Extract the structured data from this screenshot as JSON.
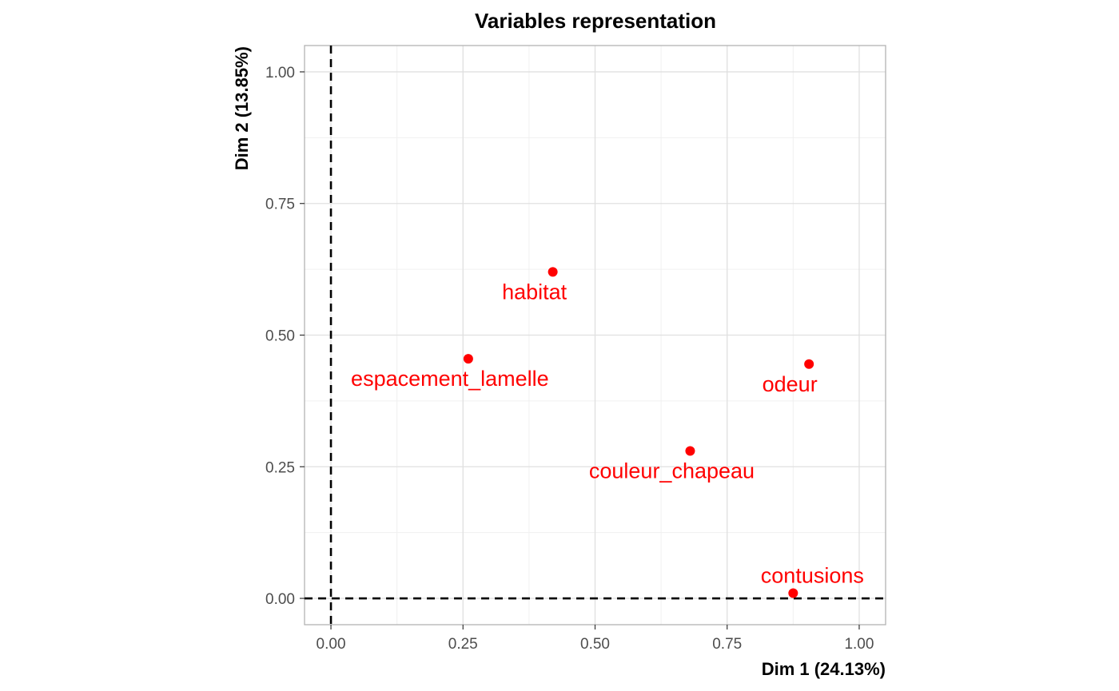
{
  "chart_data": {
    "type": "scatter",
    "title": "Variables representation",
    "xlabel": "Dim 1 (24.13%)",
    "ylabel": "Dim 2 (13.85%)",
    "xlim": [
      -0.05,
      1.05
    ],
    "ylim": [
      -0.05,
      1.05
    ],
    "x_ticks": [
      0,
      0.25,
      0.5,
      0.75,
      1
    ],
    "x_tick_labels": [
      "0.00",
      "0.25",
      "0.50",
      "0.75",
      "1.00"
    ],
    "y_ticks": [
      0,
      0.25,
      0.5,
      0.75,
      1
    ],
    "y_tick_labels": [
      "0.00",
      "0.25",
      "0.50",
      "0.75",
      "1.00"
    ],
    "grid": true,
    "reference_lines": {
      "x": 0,
      "y": 0,
      "style": "dashed"
    },
    "point_color": "#ff0000",
    "points": [
      {
        "label": "habitat",
        "x": 0.42,
        "y": 0.62
      },
      {
        "label": "espacement_lamelle",
        "x": 0.26,
        "y": 0.455
      },
      {
        "label": "odeur",
        "x": 0.905,
        "y": 0.445
      },
      {
        "label": "couleur_chapeau",
        "x": 0.68,
        "y": 0.28
      },
      {
        "label": "contusions",
        "x": 0.875,
        "y": 0.01
      }
    ]
  }
}
